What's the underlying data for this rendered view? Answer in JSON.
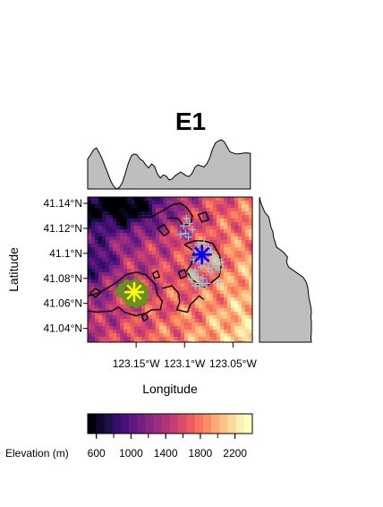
{
  "chart_data": {
    "type": "heatmap",
    "title": "E1",
    "xlabel": "Longitude",
    "ylabel": "Latitude",
    "x_ticks": [
      "123.15°W",
      "123.1°W",
      "123.05°W"
    ],
    "x_tick_values": [
      -123.15,
      -123.1,
      -123.05
    ],
    "y_ticks": [
      "41.04°N",
      "41.06°N",
      "41.08°N",
      "41.1°N",
      "41.12°N",
      "41.14°N"
    ],
    "y_tick_values": [
      41.04,
      41.06,
      41.08,
      41.1,
      41.12,
      41.14
    ],
    "xlim": [
      -123.2,
      -123.03
    ],
    "ylim": [
      41.029,
      41.145
    ],
    "colorbar": {
      "label": "Elevation (m)",
      "ticks": [
        "600",
        "1000",
        "1400",
        "1800",
        "2200"
      ],
      "tick_values": [
        600,
        1000,
        1400,
        1800,
        2200
      ],
      "range": [
        500,
        2400
      ],
      "colors": [
        "#000004",
        "#0d0829",
        "#1d1147",
        "#331067",
        "#4a1079",
        "#5f187f",
        "#721f81",
        "#862781",
        "#9a2f7e",
        "#b0347a",
        "#c63d73",
        "#da4b6a",
        "#ec5c62",
        "#f7735c",
        "#fc8d63",
        "#fea873",
        "#fec287",
        "#fdda9c",
        "#fcf0b1",
        "#fcfdbf"
      ]
    },
    "markers": [
      {
        "symbol": "star",
        "color": "#ffff00",
        "lon": -123.152,
        "lat": 41.069
      },
      {
        "symbol": "star",
        "color": "#0000ff",
        "lon": -123.082,
        "lat": 41.099
      }
    ],
    "point_series": [
      {
        "symbol": "plus",
        "color": "#87ceeb",
        "points": [
          [
            -123.098,
            41.128
          ],
          [
            -123.101,
            41.122
          ],
          [
            -123.095,
            41.124
          ],
          [
            -123.092,
            41.119
          ],
          [
            -123.099,
            41.116
          ],
          [
            -123.104,
            41.115
          ],
          [
            -123.096,
            41.113
          ],
          [
            -123.086,
            41.107
          ],
          [
            -123.08,
            41.108
          ],
          [
            -123.075,
            41.105
          ],
          [
            -123.089,
            41.102
          ],
          [
            -123.084,
            41.101
          ],
          [
            -123.079,
            41.1
          ],
          [
            -123.073,
            41.102
          ],
          [
            -123.069,
            41.098
          ],
          [
            -123.066,
            41.095
          ],
          [
            -123.091,
            41.095
          ],
          [
            -123.087,
            41.094
          ],
          [
            -123.081,
            41.093
          ],
          [
            -123.076,
            41.094
          ],
          [
            -123.071,
            41.092
          ],
          [
            -123.068,
            41.089
          ],
          [
            -123.075,
            41.088
          ],
          [
            -123.083,
            41.089
          ],
          [
            -123.089,
            41.086
          ],
          [
            -123.094,
            41.085
          ],
          [
            -123.091,
            41.082
          ],
          [
            -123.086,
            41.081
          ],
          [
            -123.081,
            41.08
          ],
          [
            -123.072,
            41.085
          ],
          [
            -123.064,
            41.087
          ],
          [
            -123.062,
            41.093
          ],
          [
            -123.085,
            41.076
          ],
          [
            -123.081,
            41.074
          ],
          [
            -123.077,
            41.076
          ],
          [
            -123.089,
            41.074
          ],
          [
            -123.064,
            41.077
          ],
          [
            -123.093,
            41.079
          ]
        ]
      },
      {
        "symbol": "dot",
        "color": "#6b8e23",
        "points": [
          [
            -123.165,
            41.073
          ],
          [
            -123.16,
            41.076
          ],
          [
            -123.155,
            41.075
          ],
          [
            -123.15,
            41.077
          ],
          [
            -123.145,
            41.074
          ],
          [
            -123.141,
            41.071
          ],
          [
            -123.147,
            41.068
          ],
          [
            -123.153,
            41.066
          ],
          [
            -123.158,
            41.068
          ],
          [
            -123.163,
            41.067
          ],
          [
            -123.168,
            41.069
          ],
          [
            -123.16,
            41.064
          ],
          [
            -123.152,
            41.063
          ],
          [
            -123.145,
            41.064
          ],
          [
            -123.14,
            41.066
          ],
          [
            -123.157,
            41.06
          ],
          [
            -123.15,
            41.059
          ],
          [
            -123.143,
            41.061
          ]
        ]
      }
    ],
    "contours": [
      [
        [
          -123.145,
          41.129
        ],
        [
          -123.135,
          41.129
        ],
        [
          -123.125,
          41.133
        ],
        [
          -123.112,
          41.139
        ],
        [
          -123.104,
          41.14
        ],
        [
          -123.097,
          41.136
        ],
        [
          -123.092,
          41.13
        ],
        [
          -123.093,
          41.125
        ],
        [
          -123.101,
          41.122
        ],
        [
          -123.107,
          41.128
        ],
        [
          -123.118,
          41.128
        ]
      ],
      [
        [
          -123.1,
          41.107
        ],
        [
          -123.094,
          41.104
        ],
        [
          -123.09,
          41.101
        ],
        [
          -123.093,
          41.091
        ],
        [
          -123.098,
          41.086
        ],
        [
          -123.093,
          41.08
        ],
        [
          -123.086,
          41.075
        ],
        [
          -123.08,
          41.073
        ],
        [
          -123.072,
          41.077
        ],
        [
          -123.064,
          41.082
        ],
        [
          -123.062,
          41.091
        ],
        [
          -123.064,
          41.099
        ],
        [
          -123.071,
          41.108
        ],
        [
          -123.08,
          41.11
        ],
        [
          -123.09,
          41.11
        ],
        [
          -123.1,
          41.107
        ]
      ],
      [
        [
          -123.2,
          41.054
        ],
        [
          -123.19,
          41.053
        ],
        [
          -123.175,
          41.054
        ],
        [
          -123.168,
          41.057
        ],
        [
          -123.162,
          41.053
        ],
        [
          -123.15,
          41.05
        ],
        [
          -123.14,
          41.052
        ],
        [
          -123.134,
          41.055
        ],
        [
          -123.125,
          41.055
        ],
        [
          -123.123,
          41.062
        ],
        [
          -123.128,
          41.067
        ],
        [
          -123.13,
          41.075
        ],
        [
          -123.14,
          41.083
        ],
        [
          -123.15,
          41.085
        ],
        [
          -123.16,
          41.083
        ],
        [
          -123.17,
          41.077
        ],
        [
          -123.18,
          41.072
        ],
        [
          -123.19,
          41.068
        ],
        [
          -123.2,
          41.066
        ]
      ],
      [
        [
          -123.123,
          41.072
        ],
        [
          -123.113,
          41.074
        ],
        [
          -123.106,
          41.068
        ],
        [
          -123.105,
          41.061
        ],
        [
          -123.108,
          41.055
        ],
        [
          -123.097,
          41.053
        ],
        [
          -123.094,
          41.059
        ],
        [
          -123.09,
          41.062
        ],
        [
          -123.085,
          41.066
        ],
        [
          -123.08,
          41.063
        ]
      ],
      [
        [
          -123.128,
          41.12
        ],
        [
          -123.121,
          41.123
        ],
        [
          -123.116,
          41.117
        ],
        [
          -123.121,
          41.114
        ],
        [
          -123.128,
          41.12
        ]
      ],
      [
        [
          -123.086,
          41.131
        ],
        [
          -123.078,
          41.133
        ],
        [
          -123.075,
          41.127
        ],
        [
          -123.082,
          41.125
        ],
        [
          -123.086,
          41.131
        ]
      ],
      [
        [
          -123.106,
          41.085
        ],
        [
          -123.1,
          41.087
        ],
        [
          -123.098,
          41.082
        ],
        [
          -123.104,
          41.08
        ],
        [
          -123.106,
          41.085
        ]
      ],
      [
        [
          -123.133,
          41.084
        ],
        [
          -123.128,
          41.086
        ],
        [
          -123.126,
          41.081
        ],
        [
          -123.131,
          41.08
        ],
        [
          -123.133,
          41.084
        ]
      ],
      [
        [
          -123.198,
          41.068
        ],
        [
          -123.192,
          41.072
        ],
        [
          -123.186,
          41.069
        ],
        [
          -123.192,
          41.065
        ],
        [
          -123.198,
          41.068
        ]
      ],
      [
        [
          -123.144,
          41.05
        ],
        [
          -123.14,
          41.052
        ],
        [
          -123.138,
          41.048
        ],
        [
          -123.142,
          41.046
        ],
        [
          -123.144,
          41.05
        ]
      ]
    ],
    "marginal_top": [
      [
        -123.2,
        0.6
      ],
      [
        -123.197,
        0.68
      ],
      [
        -123.194,
        0.78
      ],
      [
        -123.191,
        0.82
      ],
      [
        -123.188,
        0.72
      ],
      [
        -123.185,
        0.6
      ],
      [
        -123.182,
        0.45
      ],
      [
        -123.179,
        0.3
      ],
      [
        -123.176,
        0.15
      ],
      [
        -123.173,
        0.05
      ],
      [
        -123.17,
        0.0
      ],
      [
        -123.167,
        0.04
      ],
      [
        -123.164,
        0.14
      ],
      [
        -123.161,
        0.32
      ],
      [
        -123.158,
        0.52
      ],
      [
        -123.155,
        0.66
      ],
      [
        -123.152,
        0.7
      ],
      [
        -123.149,
        0.68
      ],
      [
        -123.146,
        0.6
      ],
      [
        -123.143,
        0.56
      ],
      [
        -123.14,
        0.48
      ],
      [
        -123.137,
        0.42
      ],
      [
        -123.134,
        0.5
      ],
      [
        -123.131,
        0.45
      ],
      [
        -123.128,
        0.3
      ],
      [
        -123.125,
        0.22
      ],
      [
        -123.122,
        0.28
      ],
      [
        -123.119,
        0.26
      ],
      [
        -123.116,
        0.18
      ],
      [
        -123.113,
        0.2
      ],
      [
        -123.11,
        0.26
      ],
      [
        -123.107,
        0.3
      ],
      [
        -123.104,
        0.34
      ],
      [
        -123.101,
        0.3
      ],
      [
        -123.098,
        0.26
      ],
      [
        -123.095,
        0.25
      ],
      [
        -123.092,
        0.32
      ],
      [
        -123.089,
        0.44
      ],
      [
        -123.086,
        0.48
      ],
      [
        -123.083,
        0.46
      ],
      [
        -123.08,
        0.44
      ],
      [
        -123.077,
        0.5
      ],
      [
        -123.074,
        0.62
      ],
      [
        -123.071,
        0.8
      ],
      [
        -123.068,
        0.92
      ],
      [
        -123.065,
        0.96
      ],
      [
        -123.062,
        0.98
      ],
      [
        -123.059,
        0.94
      ],
      [
        -123.056,
        0.84
      ],
      [
        -123.053,
        0.74
      ],
      [
        -123.05,
        0.72
      ],
      [
        -123.047,
        0.7
      ],
      [
        -123.044,
        0.7
      ],
      [
        -123.041,
        0.71
      ],
      [
        -123.038,
        0.72
      ],
      [
        -123.035,
        0.72
      ],
      [
        -123.032,
        0.71
      ]
    ],
    "marginal_right": [
      [
        41.145,
        0.0
      ],
      [
        41.141,
        0.02
      ],
      [
        41.137,
        0.06
      ],
      [
        41.133,
        0.1
      ],
      [
        41.129,
        0.18
      ],
      [
        41.125,
        0.2
      ],
      [
        41.121,
        0.22
      ],
      [
        41.117,
        0.26
      ],
      [
        41.113,
        0.27
      ],
      [
        41.109,
        0.3
      ],
      [
        41.105,
        0.33
      ],
      [
        41.101,
        0.46
      ],
      [
        41.097,
        0.54
      ],
      [
        41.093,
        0.52
      ],
      [
        41.089,
        0.56
      ],
      [
        41.085,
        0.7
      ],
      [
        41.081,
        0.84
      ],
      [
        41.077,
        0.9
      ],
      [
        41.073,
        0.93
      ],
      [
        41.069,
        0.94
      ],
      [
        41.065,
        0.95
      ],
      [
        41.061,
        0.97
      ],
      [
        41.057,
        0.99
      ],
      [
        41.053,
        1.0
      ],
      [
        41.049,
        0.99
      ],
      [
        41.045,
        1.0
      ],
      [
        41.041,
        1.0
      ],
      [
        41.037,
        1.0
      ],
      [
        41.033,
        0.99
      ],
      [
        41.029,
        1.0
      ]
    ]
  }
}
